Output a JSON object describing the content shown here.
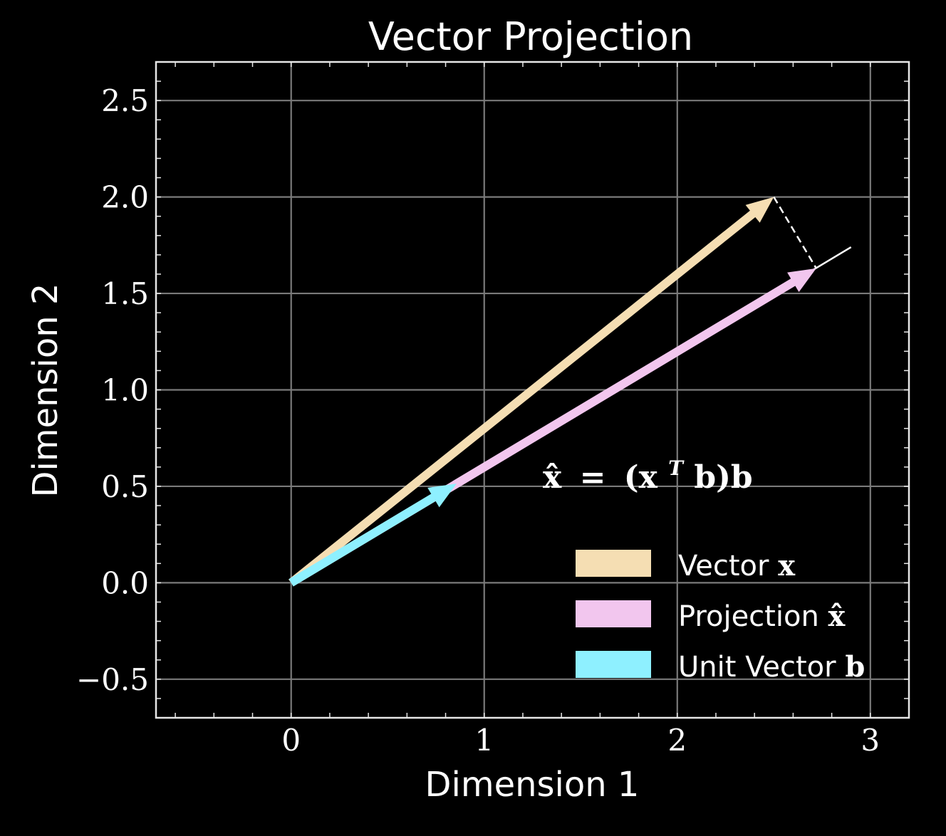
{
  "chart_data": {
    "type": "line",
    "title": "Vector Projection",
    "xlabel": "Dimension 1",
    "ylabel": "Dimension 2",
    "xlim": [
      -0.7,
      3.2
    ],
    "ylim": [
      -0.7,
      2.7
    ],
    "xticks": [
      0,
      1,
      2,
      3
    ],
    "xtick_labels": [
      "0",
      "1",
      "2",
      "3"
    ],
    "yticks": [
      -0.5,
      0.0,
      0.5,
      1.0,
      1.5,
      2.0,
      2.5
    ],
    "ytick_labels": [
      "−0.5",
      "0.0",
      "0.5",
      "1.0",
      "1.5",
      "2.0",
      "2.5"
    ],
    "grid": true,
    "background": "#000000",
    "legend_position": "bottom-right",
    "vectors": [
      {
        "name": "Vector x",
        "name_plain": "Vector ",
        "name_symbol": "x",
        "start": [
          0,
          0
        ],
        "end": [
          2.5,
          2.0
        ],
        "color": "#f5deb3"
      },
      {
        "name": "Projection x̂",
        "name_plain": "Projection ",
        "name_symbol": "x̂",
        "start": [
          0,
          0
        ],
        "end": [
          2.72,
          1.63
        ],
        "color": "#f2c6ee"
      },
      {
        "name": "Unit Vector b",
        "name_plain": "Unit Vector ",
        "name_symbol": "b",
        "start": [
          0,
          0
        ],
        "end": [
          0.857,
          0.514
        ],
        "color": "#8ef0ff"
      }
    ],
    "direction_line": {
      "start": [
        0,
        0
      ],
      "end": [
        2.9,
        1.74
      ],
      "color": "#ffffff"
    },
    "perpendicular_line": {
      "start": [
        2.5,
        2.0
      ],
      "end": [
        2.72,
        1.63
      ],
      "style": "dashed",
      "color": "#ffffff"
    },
    "annotation": {
      "text": "x̂ = (xᵀb)b",
      "parts": [
        "x̂",
        "=",
        "(x",
        "T",
        "b)b"
      ],
      "position": [
        1.3,
        0.55
      ]
    }
  }
}
